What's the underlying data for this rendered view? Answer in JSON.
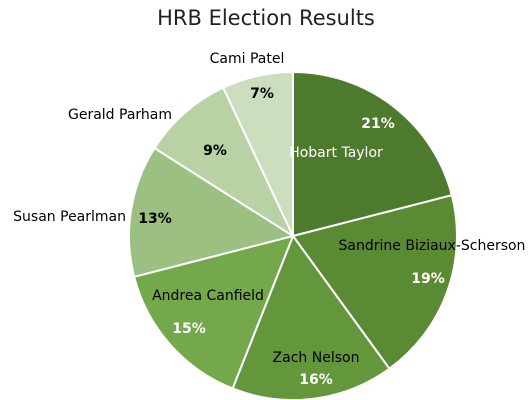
{
  "chart_data": {
    "type": "pie",
    "title": "HRB Election Results",
    "slices": [
      {
        "label": "Hobart Taylor",
        "value": 21,
        "display": "21%",
        "color": "#4e7a2e"
      },
      {
        "label": "Sandrine Biziaux-Scherson",
        "value": 19,
        "display": "19%",
        "color": "#5b8a35"
      },
      {
        "label": "Zach Nelson",
        "value": 16,
        "display": "16%",
        "color": "#64963c"
      },
      {
        "label": "Andrea Canfield",
        "value": 15,
        "display": "15%",
        "color": "#73a84b"
      },
      {
        "label": "Susan Pearlman",
        "value": 13,
        "display": "13%",
        "color": "#9cbf82"
      },
      {
        "label": "Gerald Parham",
        "value": 9,
        "display": "9%",
        "color": "#b8d1a5"
      },
      {
        "label": "Cami Patel",
        "value": 7,
        "display": "7%",
        "color": "#ccdebe"
      }
    ]
  }
}
